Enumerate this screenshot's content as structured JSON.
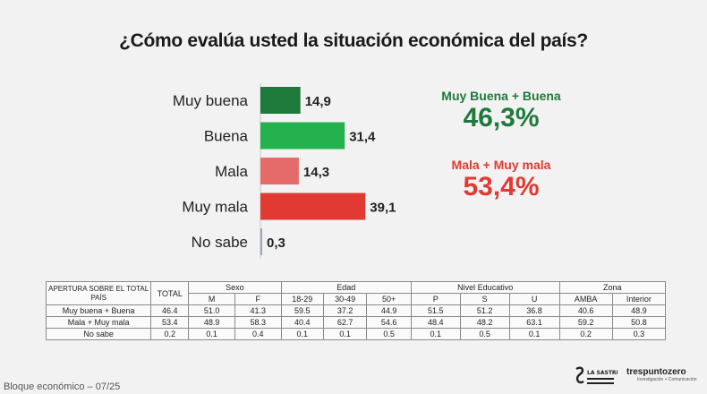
{
  "title": "¿Cómo evalúa usted la situación económica del país?",
  "chart_data": {
    "type": "bar",
    "orientation": "horizontal",
    "categories": [
      "Muy buena",
      "Buena",
      "Mala",
      "Muy mala",
      "No sabe"
    ],
    "values": [
      14.9,
      31.4,
      14.3,
      39.1,
      0.3
    ],
    "value_labels": [
      "14,9",
      "31,4",
      "14,3",
      "39,1",
      "0,3"
    ],
    "colors": [
      "#1e7a3a",
      "#22b14c",
      "#e56b6a",
      "#e03a33",
      "#9aa5b5"
    ]
  },
  "summary": {
    "positive": {
      "label": "Muy Buena + Buena",
      "value": "46,3%",
      "color": "#1e7a3a"
    },
    "negative": {
      "label": "Mala + Muy mala",
      "value": "53,4%",
      "color": "#e03a33"
    }
  },
  "table": {
    "corner": "APERTURA SOBRE EL TOTAL PAÍS",
    "total": "TOTAL",
    "groups": [
      {
        "name": "Sexo",
        "cols": [
          "M",
          "F"
        ]
      },
      {
        "name": "Edad",
        "cols": [
          "18-29",
          "30-49",
          "50+"
        ]
      },
      {
        "name": "Nivel Educativo",
        "cols": [
          "P",
          "S",
          "U"
        ]
      },
      {
        "name": "Zona",
        "cols": [
          "AMBA",
          "Interior"
        ]
      }
    ],
    "rows": [
      {
        "label": "Muy buena + Buena",
        "values": [
          "46.4",
          "51.0",
          "41.3",
          "59.5",
          "37.2",
          "44.9",
          "51.5",
          "51.2",
          "36.8",
          "40.6",
          "48.9"
        ]
      },
      {
        "label": "Mala + Muy mala",
        "values": [
          "53.4",
          "48.9",
          "58.3",
          "40.4",
          "62.7",
          "54.6",
          "48.4",
          "48.2",
          "63.1",
          "59.2",
          "50.8"
        ]
      },
      {
        "label": "No sabe",
        "values": [
          "0.2",
          "0.1",
          "0.4",
          "0.1",
          "0.1",
          "0.5",
          "0.1",
          "0.5",
          "0.1",
          "0.2",
          "0.3"
        ]
      }
    ]
  },
  "footer": "Bloque económico – 07/25",
  "logos": {
    "sastreria": "LA SASTRERÍA",
    "trespuntozero": "trespuntozero",
    "trespuntozero_sub": "Investigación + Comunicación"
  }
}
